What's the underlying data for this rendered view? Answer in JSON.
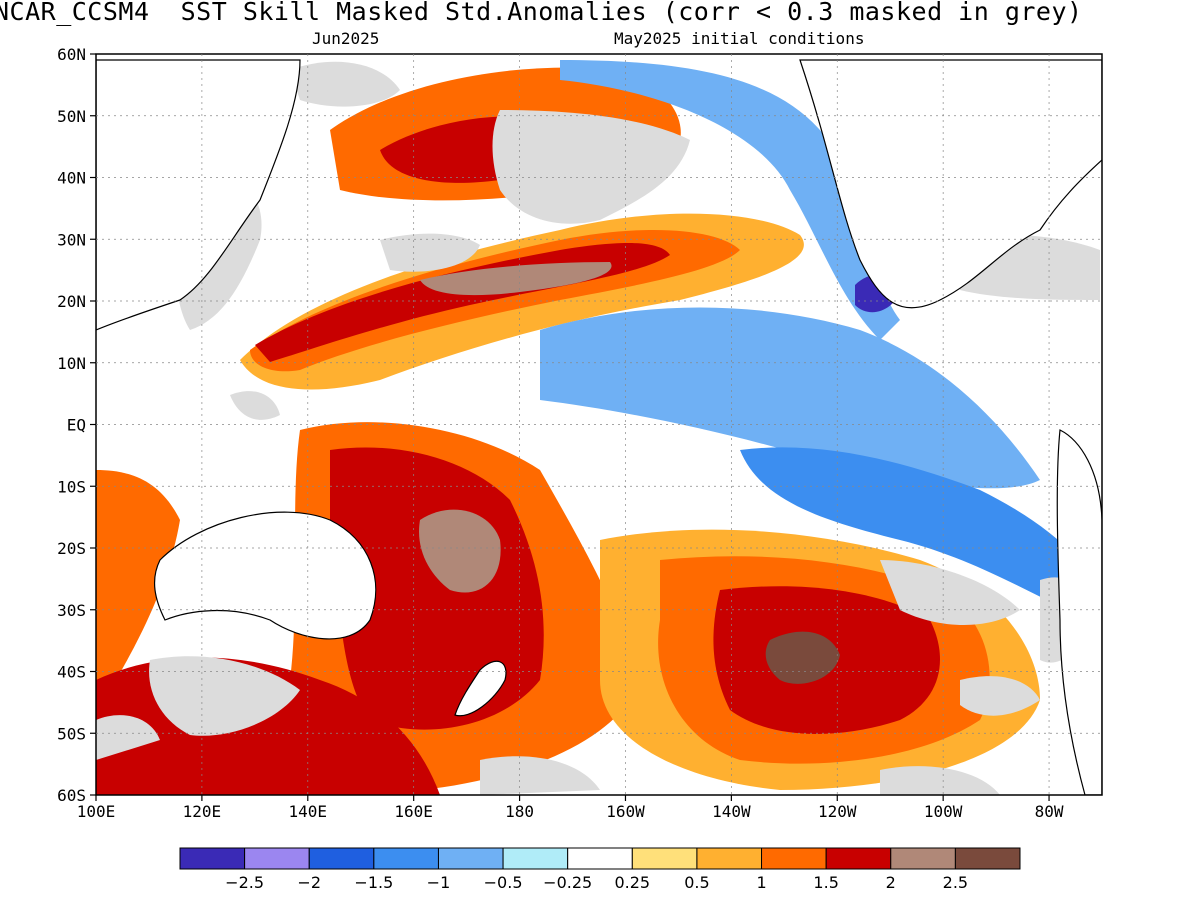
{
  "header": {
    "title": "NCAR_CCSM4  SST Skill Masked Std.Anomalies (corr < 0.3 masked in grey)",
    "valid_month": "Jun2025",
    "init_text": "May2025 initial conditions"
  },
  "axes": {
    "lat_labels": [
      "60N",
      "50N",
      "40N",
      "30N",
      "20N",
      "10N",
      "EQ",
      "10S",
      "20S",
      "30S",
      "40S",
      "50S",
      "60S"
    ],
    "lon_labels": [
      "100E",
      "120E",
      "140E",
      "160E",
      "180",
      "160W",
      "140W",
      "120W",
      "100W",
      "80W"
    ]
  },
  "colorbar": {
    "colors": [
      "#3a2ab6",
      "#9b86f0",
      "#1f5fe0",
      "#3c8ef0",
      "#6fb0f4",
      "#b0ecf8",
      "#ffffff",
      "#ffe07a",
      "#ffb030",
      "#ff6a00",
      "#c80000",
      "#b08878",
      "#7a4a3c"
    ],
    "labels": [
      "−2.5",
      "−2",
      "−1.5",
      "−1",
      "−0.5",
      "−0.25",
      "0.25",
      "0.5",
      "1",
      "1.5",
      "2",
      "2.5"
    ],
    "mask_color": "#dcdcdc"
  }
}
